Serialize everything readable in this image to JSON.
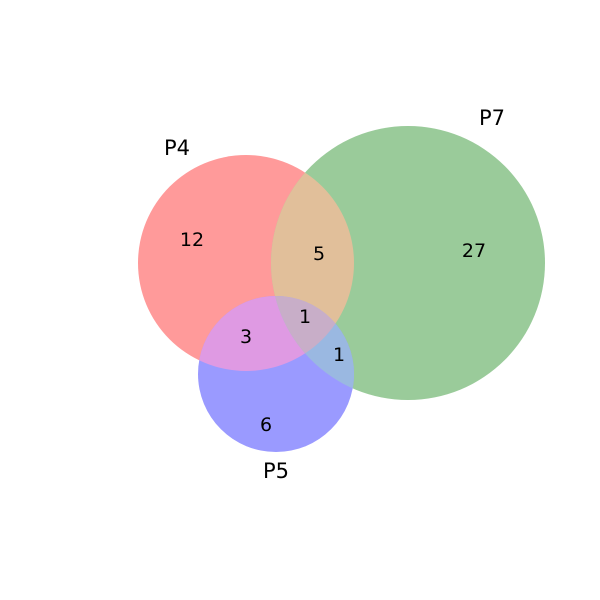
{
  "venn": {
    "sets": [
      {
        "name": "P4",
        "color": "#ff9a9a"
      },
      {
        "name": "P7",
        "color": "#9acb9a"
      },
      {
        "name": "P5",
        "color": "#9a9aff"
      }
    ],
    "regions": {
      "P4_only": "12",
      "P7_only": "27",
      "P5_only": "6",
      "P4_P7": "5",
      "P4_P5": "3",
      "P7_P5": "1",
      "P4_P7_P5": "1"
    }
  }
}
